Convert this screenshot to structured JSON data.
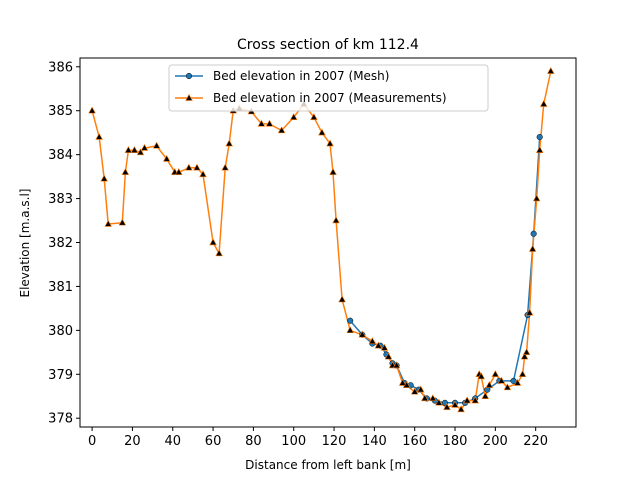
{
  "chart_data": {
    "type": "line",
    "title": "Cross section of km 112.4",
    "xlabel": "Distance from left bank [m]",
    "ylabel": "Elevation [m.a.s.l]",
    "xlim": [
      -6,
      240
    ],
    "ylim": [
      377.8,
      386.2
    ],
    "xticks": [
      0,
      20,
      40,
      60,
      80,
      100,
      120,
      140,
      160,
      180,
      200,
      220
    ],
    "yticks": [
      378,
      379,
      380,
      381,
      382,
      383,
      384,
      385,
      386
    ],
    "legend_position": "top-center",
    "series": [
      {
        "name": "Bed elevation in 2007 (Mesh)",
        "color": "#1f77b4",
        "marker": "circle",
        "x": [
          128,
          134,
          139,
          143,
          146,
          149,
          151,
          155,
          158,
          162,
          166,
          170,
          175,
          180,
          185,
          190,
          196,
          202,
          209,
          216,
          219,
          222
        ],
        "y": [
          380.22,
          379.9,
          379.7,
          379.65,
          379.45,
          379.25,
          379.2,
          378.8,
          378.75,
          378.65,
          378.45,
          378.4,
          378.35,
          378.35,
          378.35,
          378.45,
          378.65,
          378.85,
          378.85,
          380.35,
          382.2,
          384.4
        ]
      },
      {
        "name": "Bed elevation in 2007 (Measurements)",
        "color": "#ff7f0e",
        "marker": "triangle",
        "x": [
          0,
          3.5,
          6,
          8,
          15,
          16.5,
          18,
          21,
          24,
          26,
          32,
          37,
          41,
          43,
          48,
          52,
          55,
          60,
          63,
          66,
          68,
          70,
          73,
          79,
          84,
          88,
          94,
          100,
          105,
          110,
          114,
          118,
          119.5,
          121,
          124,
          128,
          134,
          139,
          142,
          145,
          147,
          149,
          151,
          154,
          156,
          160,
          163,
          165,
          169,
          172,
          176,
          180,
          183,
          186,
          190,
          192,
          193,
          195,
          197,
          200,
          203,
          206,
          211,
          213.5,
          214.5,
          215.5,
          217,
          218.5,
          220.5,
          222,
          224,
          227.5
        ],
        "y": [
          385.0,
          384.4,
          383.45,
          382.42,
          382.45,
          383.6,
          384.1,
          384.1,
          384.05,
          384.15,
          384.2,
          383.9,
          383.6,
          383.6,
          383.7,
          383.7,
          383.55,
          382.0,
          381.75,
          383.7,
          384.25,
          385.0,
          385.05,
          384.98,
          384.7,
          384.7,
          384.55,
          384.85,
          385.15,
          384.85,
          384.5,
          384.25,
          383.6,
          382.5,
          380.7,
          380.0,
          379.9,
          379.75,
          379.65,
          379.6,
          379.4,
          379.2,
          379.2,
          378.8,
          378.75,
          378.6,
          378.65,
          378.45,
          378.45,
          378.35,
          378.25,
          378.3,
          378.2,
          378.4,
          378.4,
          379.0,
          378.95,
          378.5,
          378.75,
          379.0,
          378.85,
          378.7,
          378.8,
          379.0,
          379.4,
          379.5,
          380.4,
          381.85,
          383.0,
          384.1,
          385.15,
          385.9
        ]
      }
    ]
  }
}
